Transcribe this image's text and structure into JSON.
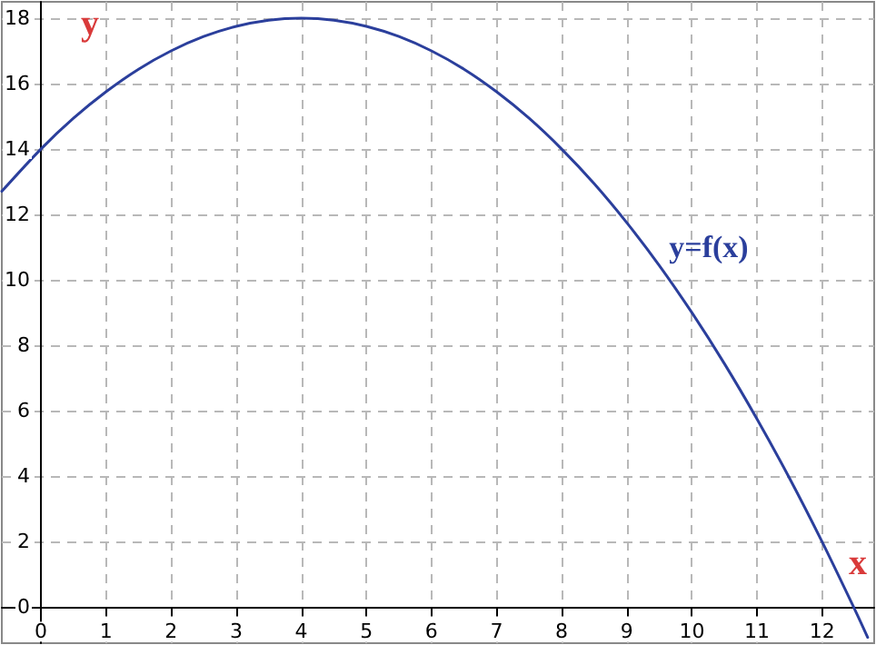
{
  "chart_data": {
    "type": "line",
    "xlabel": "x",
    "ylabel": "y",
    "x": [
      -0.6,
      0,
      0.5,
      1,
      1.5,
      2,
      2.5,
      3,
      3.5,
      4,
      4.5,
      5,
      5.5,
      6,
      6.5,
      7,
      7.5,
      8,
      8.5,
      9,
      9.5,
      10,
      10.5,
      11,
      11.5,
      12,
      12.5,
      12.7
    ],
    "series": [
      {
        "color": "#2b3f9c",
        "values": [
          12.71,
          14,
          14.94,
          15.75,
          16.44,
          17,
          17.44,
          17.75,
          17.94,
          18,
          17.94,
          17.75,
          17.44,
          17,
          16.44,
          15.75,
          14.94,
          14,
          12.94,
          11.75,
          10.44,
          9,
          7.44,
          5.75,
          3.94,
          2,
          -0.06,
          -0.92
        ]
      }
    ],
    "annotations": [
      "y=f(x)"
    ],
    "xlim": [
      -0.6,
      12.8
    ],
    "ylim": [
      -1.1,
      18.5
    ],
    "xticks": [
      0,
      1,
      2,
      3,
      4,
      5,
      6,
      7,
      8,
      9,
      10,
      11,
      12
    ],
    "yticks": [
      0,
      2,
      4,
      6,
      8,
      10,
      12,
      14,
      16,
      18
    ],
    "grid": true,
    "marker": "none",
    "line_style": "solid"
  }
}
